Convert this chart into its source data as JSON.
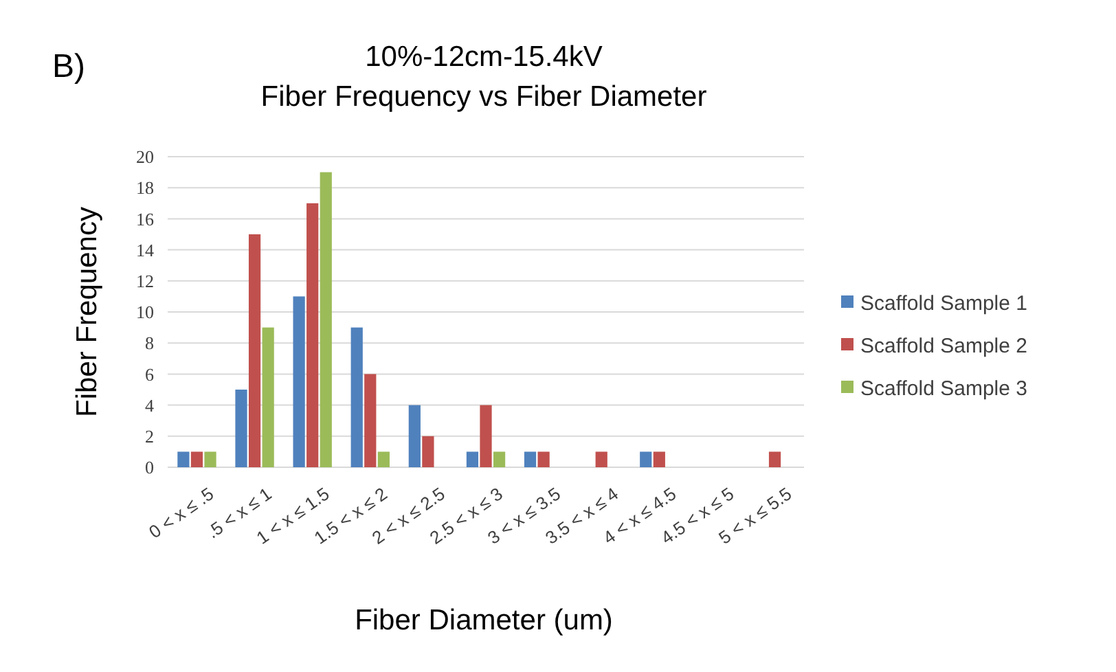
{
  "chart_data": {
    "type": "bar",
    "title": "10%-12cm-15.4kV",
    "subtitle": "Fiber Frequency vs Fiber Diameter",
    "xlabel": "Fiber Diameter (um)",
    "ylabel": "Fiber Frequency",
    "annotations": [
      "B)"
    ],
    "categories": [
      "0 < x ≤ .5",
      ".5 < x ≤ 1",
      "1 < x ≤ 1.5",
      "1.5 < x ≤ 2",
      "2 < x ≤ 2.5",
      "2.5 < x ≤ 3",
      "3 < x ≤ 3.5",
      "3.5 < x ≤ 4",
      "4 < x ≤ 4.5",
      "4.5 < x ≤ 5",
      "5 < x ≤ 5.5"
    ],
    "series": [
      {
        "name": "Scaffold Sample 1",
        "color": "#4f81bd",
        "values": [
          1,
          5,
          11,
          9,
          4,
          1,
          1,
          0,
          1,
          0,
          0
        ]
      },
      {
        "name": "Scaffold Sample 2",
        "color": "#c0504d",
        "values": [
          1,
          15,
          17,
          6,
          2,
          4,
          1,
          1,
          1,
          0,
          1
        ]
      },
      {
        "name": "Scaffold Sample 3",
        "color": "#9bbb59",
        "values": [
          1,
          9,
          19,
          1,
          0,
          1,
          0,
          0,
          0,
          0,
          0
        ]
      }
    ],
    "ylim": [
      0,
      20
    ],
    "yticks": [
      0,
      2,
      4,
      6,
      8,
      10,
      12,
      14,
      16,
      18,
      20
    ],
    "grid": "y",
    "legend": "right"
  }
}
